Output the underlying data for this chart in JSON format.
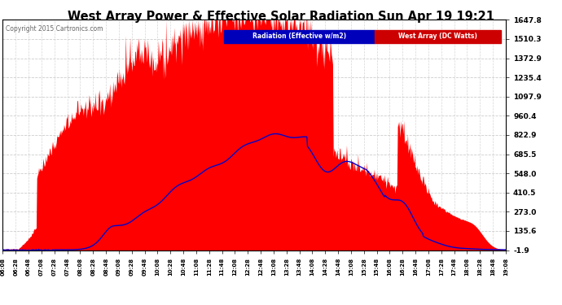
{
  "title": "West Array Power & Effective Solar Radiation Sun Apr 19 19:21",
  "copyright": "Copyright 2015 Cartronics.com",
  "legend_radiation": "Radiation (Effective w/m2)",
  "legend_west": "West Array (DC Watts)",
  "yticks": [
    1647.8,
    1510.3,
    1372.9,
    1235.4,
    1097.9,
    960.4,
    822.9,
    685.5,
    548.0,
    410.5,
    273.0,
    135.6,
    -1.9
  ],
  "ymin": -1.9,
  "ymax": 1647.8,
  "plot_bg_color": "#FFFFFF",
  "radiation_fill_color": "#FF0000",
  "west_line_color": "#0000CC",
  "grid_color": "#CCCCCC",
  "xtick_labels": [
    "06:08",
    "06:28",
    "06:48",
    "07:08",
    "07:28",
    "07:48",
    "08:08",
    "08:28",
    "08:48",
    "09:08",
    "09:28",
    "09:48",
    "10:08",
    "10:28",
    "10:48",
    "11:08",
    "11:28",
    "11:48",
    "12:08",
    "12:28",
    "12:48",
    "13:08",
    "13:28",
    "13:48",
    "14:08",
    "14:28",
    "14:48",
    "15:08",
    "15:28",
    "15:48",
    "16:08",
    "16:28",
    "16:48",
    "17:08",
    "17:28",
    "17:48",
    "18:08",
    "18:28",
    "18:48",
    "19:08"
  ]
}
